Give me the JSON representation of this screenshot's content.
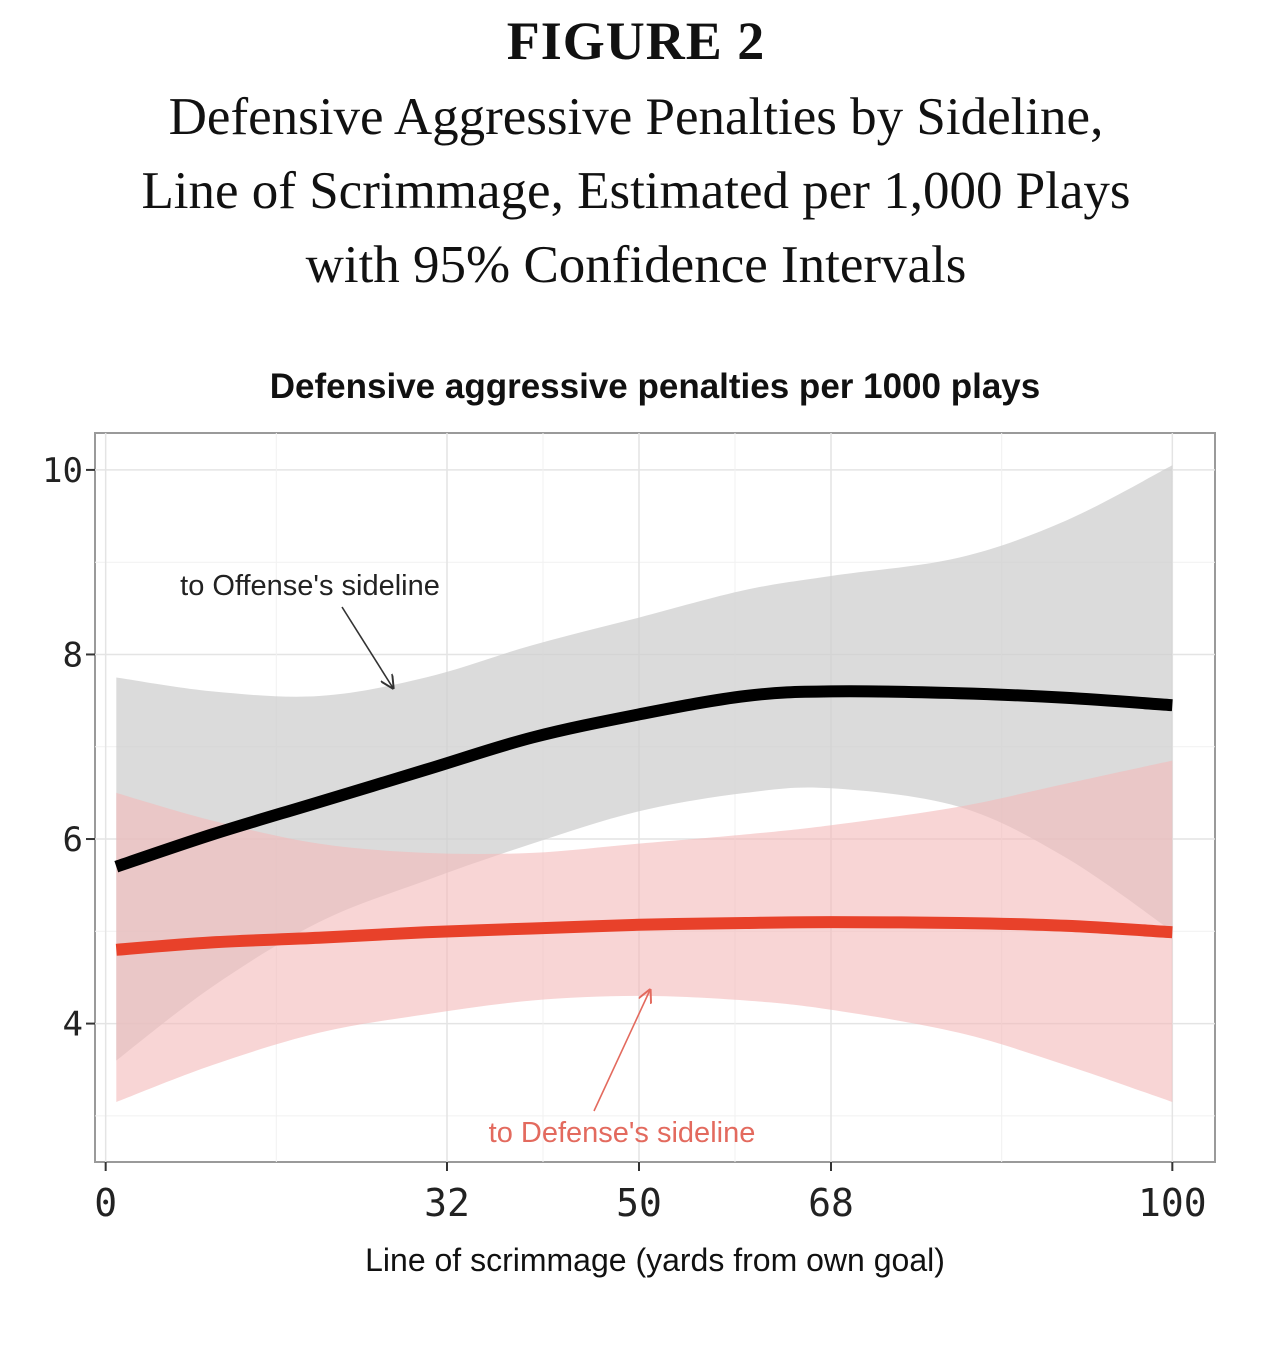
{
  "figure": {
    "number": "FIGURE 2",
    "caption_lines": [
      "Defensive Aggressive Penalties by Sideline,",
      "Line of Scrimmage, Estimated per 1,000 Plays",
      "with 95% Confidence Intervals"
    ]
  },
  "chart_data": {
    "type": "line",
    "title": "Defensive aggressive penalties per 1000 plays",
    "xlabel": "Line of scrimmage (yards from own goal)",
    "ylabel": "",
    "xlim": [
      -1,
      104
    ],
    "ylim": [
      2.5,
      10.4
    ],
    "x_ticks": [
      0,
      32,
      50,
      68,
      100
    ],
    "y_ticks": [
      4,
      6,
      8,
      10
    ],
    "grid": true,
    "legend": "none (inline annotations)",
    "x": [
      1,
      10,
      20,
      30,
      40,
      50,
      60,
      68,
      80,
      90,
      100
    ],
    "series": [
      {
        "name": "to Offense's sideline",
        "color": "#000000",
        "band_color": "#cfcfcf",
        "values": [
          5.7,
          6.05,
          6.4,
          6.75,
          7.1,
          7.35,
          7.55,
          7.6,
          7.58,
          7.53,
          7.45
        ],
        "ci_lower": [
          3.6,
          4.4,
          5.1,
          5.55,
          5.95,
          6.3,
          6.5,
          6.55,
          6.35,
          5.8,
          5.0
        ],
        "ci_upper": [
          7.75,
          7.6,
          7.55,
          7.75,
          8.1,
          8.4,
          8.7,
          8.85,
          9.05,
          9.45,
          10.05
        ]
      },
      {
        "name": "to Defense's sideline",
        "color": "#e8412a",
        "band_color": "#f3b9b9",
        "values": [
          4.8,
          4.88,
          4.93,
          4.99,
          5.03,
          5.07,
          5.09,
          5.1,
          5.09,
          5.06,
          4.99
        ],
        "ci_lower": [
          3.15,
          3.55,
          3.9,
          4.1,
          4.25,
          4.3,
          4.25,
          4.15,
          3.9,
          3.55,
          3.15
        ],
        "ci_upper": [
          6.5,
          6.2,
          5.95,
          5.85,
          5.85,
          5.95,
          6.05,
          6.15,
          6.35,
          6.6,
          6.85
        ]
      }
    ],
    "annotations": [
      {
        "text": "to Offense's sideline",
        "color": "#222222",
        "at": [
          29,
          7.55
        ]
      },
      {
        "text": "to Defense's sideline",
        "color": "#e36a5e",
        "at": [
          50,
          4.35
        ]
      }
    ]
  }
}
